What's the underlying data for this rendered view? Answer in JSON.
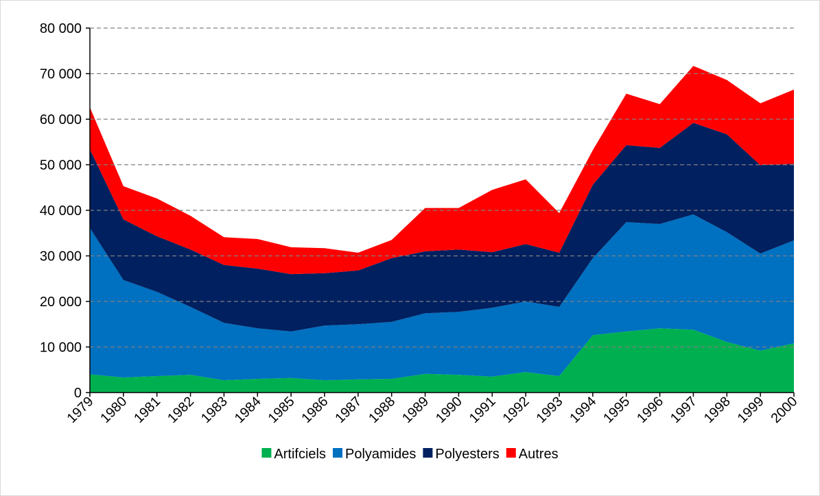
{
  "chart_data": {
    "type": "stacked_area",
    "categories": [
      "1979",
      "1980",
      "1981",
      "1982",
      "1983",
      "1984",
      "1985",
      "1986",
      "1987",
      "1988",
      "1989",
      "1990",
      "1991",
      "1992",
      "1993",
      "1994",
      "1995",
      "1996",
      "1997",
      "1998",
      "1999",
      "2000"
    ],
    "series": [
      {
        "name": "Artifciels",
        "color": "#00b050",
        "values": [
          4000,
          3300,
          3600,
          3900,
          2700,
          3000,
          3200,
          2700,
          2900,
          3000,
          4100,
          3900,
          3500,
          4500,
          3600,
          12600,
          13400,
          14100,
          13800,
          11100,
          9200,
          10800
        ]
      },
      {
        "name": "Polyamides",
        "color": "#0070c0",
        "values": [
          32100,
          21400,
          18500,
          14900,
          12600,
          11100,
          10200,
          12000,
          12100,
          12500,
          13300,
          13800,
          15100,
          15500,
          15200,
          16900,
          24000,
          22900,
          25300,
          24100,
          21300,
          22600
        ]
      },
      {
        "name": "Polyesters",
        "color": "#002060",
        "values": [
          17300,
          13300,
          12200,
          12600,
          12700,
          13100,
          12600,
          11500,
          11800,
          14000,
          13600,
          13700,
          12200,
          12600,
          11900,
          16100,
          16900,
          16700,
          20100,
          21500,
          19400,
          16800
        ]
      },
      {
        "name": "Autres",
        "color": "#ff0000",
        "values": [
          9200,
          7300,
          8300,
          7400,
          6100,
          6500,
          5900,
          5500,
          3900,
          4000,
          9500,
          9100,
          13700,
          14200,
          8700,
          7600,
          11300,
          9600,
          12500,
          11900,
          13600,
          16300
        ]
      }
    ],
    "ylim": [
      0,
      80000
    ],
    "yticks": [
      {
        "value": 0,
        "label": "0"
      },
      {
        "value": 10000,
        "label": "10 000"
      },
      {
        "value": 20000,
        "label": "20 000"
      },
      {
        "value": 30000,
        "label": "30 000"
      },
      {
        "value": 40000,
        "label": "40 000"
      },
      {
        "value": 50000,
        "label": "50 000"
      },
      {
        "value": 60000,
        "label": "60 000"
      },
      {
        "value": 70000,
        "label": "70 000"
      },
      {
        "value": 80000,
        "label": "80 000"
      }
    ],
    "grid": true,
    "legend": "bottom"
  }
}
